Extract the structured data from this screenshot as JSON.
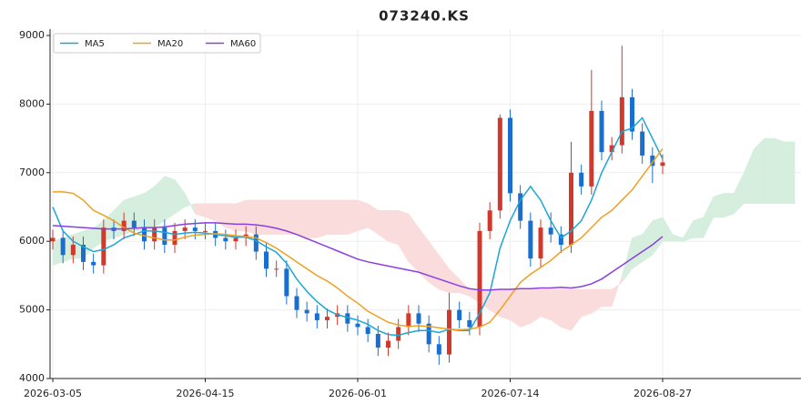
{
  "chart_data": {
    "type": "candlestick",
    "title": "073240.KS",
    "categories": [
      "2026-03-05",
      null,
      null,
      null,
      null,
      null,
      null,
      null,
      null,
      null,
      null,
      null,
      null,
      null,
      null,
      "2026-04-15",
      null,
      null,
      null,
      null,
      null,
      null,
      null,
      null,
      null,
      null,
      null,
      null,
      null,
      null,
      "2026-06-01",
      null,
      null,
      null,
      null,
      null,
      null,
      null,
      null,
      null,
      null,
      null,
      null,
      null,
      null,
      "2026-07-14",
      null,
      null,
      null,
      null,
      null,
      null,
      null,
      null,
      null,
      null,
      null,
      null,
      null,
      null,
      "2026-08-27"
    ],
    "open": [
      6000,
      6050,
      5800,
      5950,
      5700,
      5650,
      6200,
      6150,
      6300,
      6200,
      6000,
      6200,
      5950,
      6150,
      6200,
      6150,
      6150,
      6050,
      6000,
      6050,
      6100,
      5850,
      5600,
      5600,
      5200,
      5000,
      4950,
      4850,
      4900,
      4950,
      4800,
      4750,
      4650,
      4450,
      4550,
      4750,
      4950,
      4800,
      4500,
      4350,
      5000,
      4850,
      4750,
      6150,
      6450,
      7800,
      6700,
      6300,
      5750,
      6200,
      6100,
      5950,
      7000,
      6800,
      7900,
      7300,
      7400,
      8100,
      7600,
      7250,
      7100
    ],
    "high": [
      6170,
      6170,
      6070,
      6070,
      5820,
      6320,
      6320,
      6420,
      6420,
      6320,
      6320,
      6320,
      6270,
      6320,
      6320,
      6270,
      6270,
      6170,
      6170,
      6220,
      6220,
      5970,
      5720,
      5720,
      5320,
      5120,
      5070,
      5020,
      5070,
      5070,
      4920,
      4870,
      4770,
      4670,
      4870,
      5070,
      5070,
      4920,
      4620,
      5250,
      5120,
      4970,
      6270,
      6570,
      7850,
      7920,
      6820,
      6420,
      6320,
      6420,
      6220,
      7450,
      7120,
      8500,
      8050,
      7520,
      8850,
      8220,
      7720,
      7370,
      7270
    ],
    "low": [
      5880,
      5680,
      5680,
      5580,
      5530,
      5530,
      6030,
      6030,
      6080,
      5880,
      5880,
      5830,
      5830,
      6030,
      6030,
      6030,
      5930,
      5880,
      5880,
      5930,
      5730,
      5480,
      5480,
      5080,
      4880,
      4830,
      4730,
      4730,
      4780,
      4680,
      4630,
      4530,
      4330,
      4330,
      4430,
      4630,
      4680,
      4380,
      4200,
      4230,
      4730,
      4630,
      4630,
      6030,
      6330,
      6580,
      6180,
      5630,
      5630,
      5980,
      5830,
      5830,
      6680,
      6680,
      7180,
      7180,
      7280,
      7480,
      7130,
      6850,
      6980
    ],
    "close": [
      6050,
      5800,
      5950,
      5700,
      5650,
      6200,
      6150,
      6300,
      6200,
      6000,
      6200,
      5950,
      6150,
      6200,
      6150,
      6150,
      6050,
      6000,
      6050,
      6100,
      5850,
      5600,
      5600,
      5200,
      5000,
      4950,
      4850,
      4900,
      4950,
      4800,
      4750,
      4650,
      4450,
      4550,
      4750,
      4950,
      4800,
      4500,
      4350,
      5000,
      4850,
      4750,
      6150,
      6450,
      7800,
      6700,
      6300,
      5750,
      6200,
      6100,
      5950,
      7000,
      6800,
      7900,
      7300,
      7400,
      8100,
      7600,
      7250,
      7100,
      7150
    ],
    "up_color": "#d0392b",
    "down_color": "#1a6fce",
    "series": [
      {
        "name": "MA5",
        "color": "#1aa6d8",
        "values": [
          6500,
          6150,
          6000,
          5920,
          5850,
          5880,
          5950,
          6050,
          6100,
          6150,
          6150,
          6130,
          6100,
          6120,
          6130,
          6120,
          6100,
          6080,
          6060,
          6060,
          6010,
          5920,
          5840,
          5680,
          5450,
          5270,
          5120,
          5000,
          4930,
          4890,
          4850,
          4790,
          4700,
          4640,
          4630,
          4670,
          4700,
          4700,
          4670,
          4720,
          4700,
          4700,
          4950,
          5250,
          5900,
          6300,
          6600,
          6800,
          6600,
          6300,
          6050,
          6150,
          6300,
          6600,
          7000,
          7300,
          7600,
          7650,
          7800,
          7500,
          7200
        ]
      },
      {
        "name": "MA20",
        "color": "#f0a020",
        "values": [
          6720,
          6720,
          6700,
          6600,
          6450,
          6380,
          6300,
          6200,
          6120,
          6080,
          6050,
          6020,
          6020,
          6060,
          6090,
          6100,
          6110,
          6100,
          6080,
          6070,
          6050,
          5980,
          5900,
          5800,
          5700,
          5600,
          5500,
          5420,
          5320,
          5200,
          5100,
          4980,
          4900,
          4820,
          4780,
          4760,
          4770,
          4760,
          4740,
          4720,
          4710,
          4720,
          4750,
          4820,
          5000,
          5200,
          5400,
          5520,
          5620,
          5720,
          5850,
          5950,
          6050,
          6200,
          6350,
          6450,
          6600,
          6750,
          6950,
          7150,
          7350
        ]
      },
      {
        "name": "MA60",
        "color": "#8a3fe0",
        "values": [
          6230,
          6220,
          6210,
          6200,
          6190,
          6180,
          6180,
          6180,
          6190,
          6200,
          6200,
          6210,
          6230,
          6250,
          6260,
          6270,
          6270,
          6260,
          6250,
          6250,
          6240,
          6220,
          6190,
          6150,
          6100,
          6040,
          5980,
          5920,
          5860,
          5800,
          5740,
          5700,
          5670,
          5640,
          5610,
          5580,
          5550,
          5500,
          5450,
          5400,
          5350,
          5310,
          5290,
          5290,
          5300,
          5300,
          5310,
          5310,
          5320,
          5320,
          5330,
          5320,
          5340,
          5380,
          5450,
          5550,
          5650,
          5750,
          5850,
          5950,
          6070
        ]
      }
    ],
    "cloud": {
      "up_color": "#d5eedd",
      "down_color": "#fbdcdc",
      "span_a": [
        6000,
        6050,
        6100,
        6150,
        6200,
        6300,
        6450,
        6600,
        6650,
        6700,
        6800,
        6950,
        6900,
        6700,
        6400,
        6350,
        6300,
        6200,
        6150,
        6150,
        6100,
        6100,
        6100,
        6100,
        6100,
        6050,
        6050,
        6100,
        6100,
        6100,
        6150,
        6200,
        6100,
        6000,
        5950,
        5700,
        5550,
        5400,
        5300,
        5250,
        5250,
        5200,
        5100,
        5000,
        4900,
        4850,
        4750,
        4800,
        4900,
        4850,
        4750,
        4700,
        4900,
        4950,
        5050,
        5050,
        5500,
        6050,
        6100,
        6300,
        6350,
        6100,
        6050,
        6300,
        6350,
        6650,
        6700,
        6700,
        7000,
        7350,
        7500,
        7500,
        7450,
        7450
      ],
      "span_b": [
        5650,
        5700,
        5750,
        5750,
        5900,
        6000,
        6050,
        6100,
        6150,
        6150,
        6200,
        6300,
        6400,
        6500,
        6550,
        6550,
        6550,
        6550,
        6550,
        6600,
        6600,
        6600,
        6600,
        6600,
        6600,
        6600,
        6600,
        6600,
        6600,
        6600,
        6600,
        6550,
        6450,
        6450,
        6450,
        6400,
        6200,
        6000,
        5800,
        5600,
        5450,
        5300,
        5300,
        5300,
        5300,
        5300,
        5300,
        5300,
        5300,
        5300,
        5300,
        5300,
        5300,
        5300,
        5300,
        5300,
        5400,
        5600,
        5700,
        5800,
        6000,
        6000,
        6000,
        6050,
        6050,
        6350,
        6350,
        6400,
        6550,
        6550,
        6550,
        6550,
        6550,
        6550
      ]
    },
    "ylim": [
      4000,
      9000
    ],
    "yticks": [
      4000,
      5000,
      6000,
      7000,
      8000,
      9000
    ],
    "grid": true
  }
}
